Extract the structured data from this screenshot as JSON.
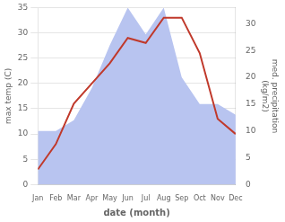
{
  "chart_data": {
    "type": "line",
    "categories": [
      "Jan",
      "Feb",
      "Mar",
      "Apr",
      "May",
      "Jun",
      "Jul",
      "Aug",
      "Sep",
      "Oct",
      "Nov",
      "Dec"
    ],
    "series": [
      {
        "type": "area",
        "color": "#b8c4f0",
        "axis": "y2",
        "values": [
          10,
          10,
          12,
          18,
          26,
          33,
          28,
          33,
          20,
          15,
          15,
          13
        ]
      },
      {
        "type": "line",
        "color": "#c0392b",
        "values": [
          3,
          8,
          16,
          20,
          24,
          29,
          28,
          33,
          33,
          26,
          13,
          10
        ]
      }
    ],
    "xlabel": "date (month)",
    "ylabel": "max temp (C)",
    "y2label": "med. precipitation\n(kg/m2)",
    "ylim": [
      0,
      35
    ],
    "yticks": [
      0,
      5,
      10,
      15,
      20,
      25,
      30,
      35
    ],
    "y2lim": [
      0,
      33
    ],
    "y2ticks": [
      0,
      5,
      10,
      15,
      20,
      25,
      30
    ],
    "grid": true
  }
}
